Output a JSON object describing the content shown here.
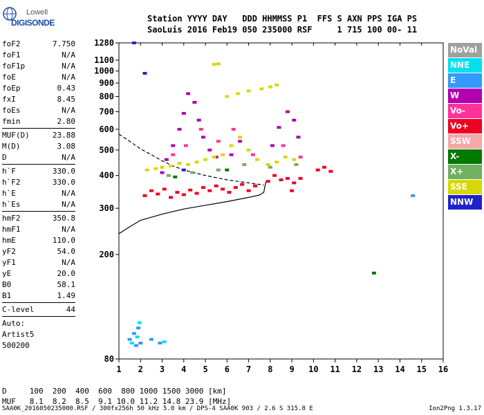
{
  "logo": {
    "brand": "Lowell",
    "name": "DIGISONDE"
  },
  "header": {
    "line1": "Station YYYY DAY   DDD HHMMSS P1  FFS S AXN PPS IGA PS",
    "line2": "SaoLuis 2016 Feb19 050 235000 RSF     1 715 100 00- 11"
  },
  "params": [
    {
      "label": "foF2",
      "value": "7.750"
    },
    {
      "label": "foF1",
      "value": "N/A"
    },
    {
      "label": "foF1p",
      "value": "N/A"
    },
    {
      "label": "foE",
      "value": "N/A"
    },
    {
      "label": "foEp",
      "value": "0.43"
    },
    {
      "label": "fxI",
      "value": "8.45"
    },
    {
      "label": "foEs",
      "value": "N/A"
    },
    {
      "label": "fmin",
      "value": "2.80"
    },
    {
      "label": "MUF(D)",
      "value": "23.88"
    },
    {
      "label": "M(D)",
      "value": "3.08"
    },
    {
      "label": "D",
      "value": "N/A"
    },
    {
      "label": "h`F",
      "value": "330.0"
    },
    {
      "label": "h`F2",
      "value": "330.0"
    },
    {
      "label": "h`E",
      "value": "N/A"
    },
    {
      "label": "h`Es",
      "value": "N/A"
    },
    {
      "label": "hmF2",
      "value": "350.8"
    },
    {
      "label": "hmF1",
      "value": "N/A"
    },
    {
      "label": "hmE",
      "value": "110.0"
    },
    {
      "label": "yF2",
      "value": "54.0"
    },
    {
      "label": "yF1",
      "value": "N/A"
    },
    {
      "label": "yE",
      "value": "20.0"
    },
    {
      "label": "B0",
      "value": "58.1"
    },
    {
      "label": "B1",
      "value": "1.49"
    },
    {
      "label": "C-level",
      "value": "44"
    }
  ],
  "autoscaling": {
    "line1": "Auto:",
    "line2": "Artist5",
    "line3": "500200"
  },
  "legend": [
    {
      "label": "NoVal",
      "color": "#a0a0a0"
    },
    {
      "label": "NNE",
      "color": "#00e0f0"
    },
    {
      "label": "E",
      "color": "#3399ff"
    },
    {
      "label": "W",
      "color": "#b000b0"
    },
    {
      "label": "Vo-",
      "color": "#ff3399"
    },
    {
      "label": "Vo+",
      "color": "#ee0022"
    },
    {
      "label": "SSW",
      "color": "#f4a8a8"
    },
    {
      "label": "X-",
      "color": "#007a00"
    },
    {
      "label": "X+",
      "color": "#70b060"
    },
    {
      "label": "SSE",
      "color": "#d8d800"
    },
    {
      "label": "NNW",
      "color": "#2222cc"
    }
  ],
  "muf_table": {
    "line1": "D     100  200  400  600  800 1000 1500 3000 [km]",
    "line2": "MUF   8.1  8.2  8.5  9.1 10.0 11.2 14.8 23.9 [MHz]"
  },
  "footer": "SAA0K_2016050235000.RSF / 300fx256h 50 kHz 5.0 km / DPS-4 SAA0K 903 / 2.6 S 315.8 E",
  "version": "Ion2Png 1.3.17",
  "chart_data": {
    "type": "scatter",
    "title": "",
    "xlabel": "",
    "ylabel": "",
    "xlim": [
      1,
      16
    ],
    "ylim": [
      80,
      1280
    ],
    "x_ticks": [
      1,
      2,
      3,
      4,
      5,
      6,
      7,
      8,
      9,
      10,
      11,
      12,
      13,
      14,
      15,
      16
    ],
    "y_ticks": [
      80,
      200,
      300,
      400,
      500,
      600,
      700,
      800,
      900,
      1000,
      1100,
      1280
    ],
    "series": [
      {
        "name": "Vo+",
        "color": "#ee0022",
        "points": [
          [
            2.2,
            335
          ],
          [
            2.5,
            350
          ],
          [
            2.8,
            340
          ],
          [
            3.1,
            355
          ],
          [
            3.4,
            330
          ],
          [
            3.7,
            345
          ],
          [
            4.0,
            338
          ],
          [
            4.3,
            352
          ],
          [
            4.6,
            342
          ],
          [
            4.9,
            360
          ],
          [
            5.2,
            350
          ],
          [
            5.5,
            365
          ],
          [
            5.8,
            355
          ],
          [
            6.1,
            345
          ],
          [
            6.4,
            360
          ],
          [
            6.7,
            370
          ],
          [
            7.0,
            350
          ],
          [
            7.3,
            365
          ],
          [
            7.9,
            380
          ],
          [
            8.2,
            400
          ],
          [
            8.5,
            385
          ],
          [
            8.8,
            390
          ],
          [
            9.1,
            375
          ],
          [
            9.4,
            390
          ],
          [
            10.2,
            420
          ],
          [
            10.5,
            430
          ],
          [
            10.8,
            415
          ],
          [
            9.0,
            350
          ]
        ]
      },
      {
        "name": "W",
        "color": "#b000b0",
        "points": [
          [
            3.2,
            460
          ],
          [
            3.5,
            520
          ],
          [
            3.8,
            600
          ],
          [
            4.0,
            690
          ],
          [
            4.2,
            820
          ],
          [
            4.5,
            760
          ],
          [
            4.7,
            650
          ],
          [
            4.9,
            560
          ],
          [
            5.2,
            500
          ],
          [
            5.5,
            470
          ],
          [
            6.2,
            480
          ],
          [
            6.6,
            540
          ],
          [
            8.1,
            520
          ],
          [
            8.4,
            610
          ],
          [
            8.8,
            700
          ],
          [
            9.1,
            650
          ],
          [
            9.3,
            560
          ],
          [
            3.0,
            410
          ]
        ]
      },
      {
        "name": "SSE",
        "color": "#d8d800",
        "points": [
          [
            2.3,
            420
          ],
          [
            2.7,
            425
          ],
          [
            3.0,
            430
          ],
          [
            3.4,
            435
          ],
          [
            3.8,
            445
          ],
          [
            4.2,
            440
          ],
          [
            4.6,
            450
          ],
          [
            5.0,
            460
          ],
          [
            5.4,
            470
          ],
          [
            5.8,
            480
          ],
          [
            6.2,
            520
          ],
          [
            6.6,
            560
          ],
          [
            7.0,
            500
          ],
          [
            7.4,
            460
          ],
          [
            7.9,
            440
          ],
          [
            8.3,
            450
          ],
          [
            8.7,
            470
          ],
          [
            9.1,
            460
          ],
          [
            6.0,
            800
          ],
          [
            6.5,
            820
          ],
          [
            7.0,
            840
          ],
          [
            7.6,
            855
          ],
          [
            8.0,
            870
          ],
          [
            8.3,
            885
          ],
          [
            5.4,
            1060
          ],
          [
            5.6,
            1065
          ]
        ]
      },
      {
        "name": "Vo-",
        "color": "#ff3399",
        "points": [
          [
            3.5,
            480
          ],
          [
            4.1,
            520
          ],
          [
            4.8,
            600
          ],
          [
            5.6,
            540
          ],
          [
            6.3,
            600
          ],
          [
            7.2,
            480
          ],
          [
            8.6,
            520
          ],
          [
            9.4,
            470
          ]
        ]
      },
      {
        "name": "X+",
        "color": "#70b060",
        "points": [
          [
            3.3,
            400
          ],
          [
            4.4,
            410
          ],
          [
            5.6,
            420
          ],
          [
            6.8,
            440
          ],
          [
            8.0,
            430
          ],
          [
            9.2,
            440
          ]
        ]
      },
      {
        "name": "E",
        "color": "#3399ff",
        "points": [
          [
            1.5,
            95
          ],
          [
            1.7,
            100
          ],
          [
            1.8,
            90
          ],
          [
            1.9,
            105
          ],
          [
            2.0,
            92
          ],
          [
            2.5,
            95
          ],
          [
            2.9,
            92
          ],
          [
            14.6,
            335
          ]
        ]
      },
      {
        "name": "NNE",
        "color": "#00e0f0",
        "points": [
          [
            1.6,
            92
          ],
          [
            1.85,
            97
          ],
          [
            1.95,
            110
          ],
          [
            3.1,
            93
          ]
        ]
      },
      {
        "name": "NNW",
        "color": "#2222cc",
        "points": [
          [
            2.2,
            980
          ],
          [
            1.7,
            1280
          ],
          [
            4.0,
            420
          ]
        ]
      },
      {
        "name": "X-",
        "color": "#007a00",
        "points": [
          [
            3.6,
            395
          ],
          [
            6.0,
            420
          ],
          [
            12.8,
            170
          ]
        ]
      }
    ],
    "traces": [
      {
        "name": "solid profile",
        "style": "solid",
        "points": [
          [
            1,
            240
          ],
          [
            1.5,
            255
          ],
          [
            2,
            270
          ],
          [
            3,
            285
          ],
          [
            4,
            298
          ],
          [
            5,
            308
          ],
          [
            6,
            318
          ],
          [
            7,
            330
          ],
          [
            7.5,
            337
          ],
          [
            7.7,
            345
          ],
          [
            7.8,
            380
          ]
        ]
      },
      {
        "name": "dashed profile",
        "style": "dashed",
        "points": [
          [
            1,
            575
          ],
          [
            1.5,
            540
          ],
          [
            2,
            505
          ],
          [
            2.5,
            480
          ],
          [
            3,
            455
          ],
          [
            3.5,
            435
          ],
          [
            4,
            420
          ],
          [
            5,
            400
          ],
          [
            6,
            385
          ],
          [
            7,
            375
          ],
          [
            7.7,
            368
          ]
        ]
      }
    ]
  }
}
